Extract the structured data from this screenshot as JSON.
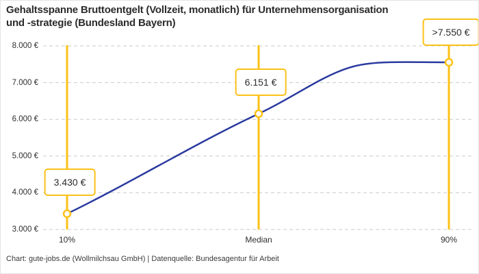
{
  "title": {
    "line1": "Gehaltsspanne Bruttoentgelt (Vollzeit, monatlich) für Unternehmensorganisation",
    "line2": "und -strategie (Bundesland Bayern)"
  },
  "footer": {
    "text": "Chart: gute-jobs.de (Wollmilchsau GmbH) | Datenquelle: Bundesagentur für Arbeit"
  },
  "colors": {
    "accent_yellow": "#FCC117",
    "line_blue": "#2A3A9F",
    "grid_gray": "#CBCBCB",
    "text": "#2E2E2E",
    "label_box_bg": "#FFFFFF"
  },
  "chart_data": {
    "type": "line",
    "title": "Gehaltsspanne Bruttoentgelt (Vollzeit, monatlich) für Unternehmensorganisation und -strategie (Bundesland Bayern)",
    "categories": [
      "10%",
      "Median",
      "90%"
    ],
    "values": [
      3430,
      6151,
      7550
    ],
    "point_labels": [
      "3.430 €",
      "6.151 €",
      ">7.550 €"
    ],
    "y_ticks": [
      3000,
      4000,
      5000,
      6000,
      7000,
      8000
    ],
    "y_tick_labels": [
      "3.000 €",
      "4.000 €",
      "5.000 €",
      "6.000 €",
      "7.000 €",
      "8.000 €"
    ],
    "ylim": [
      3000,
      8000
    ],
    "grid": "dashed-horizontal",
    "legend": "none",
    "marker_style": "open-circle",
    "annotation_lines": "vertical-at-each-percentile"
  }
}
